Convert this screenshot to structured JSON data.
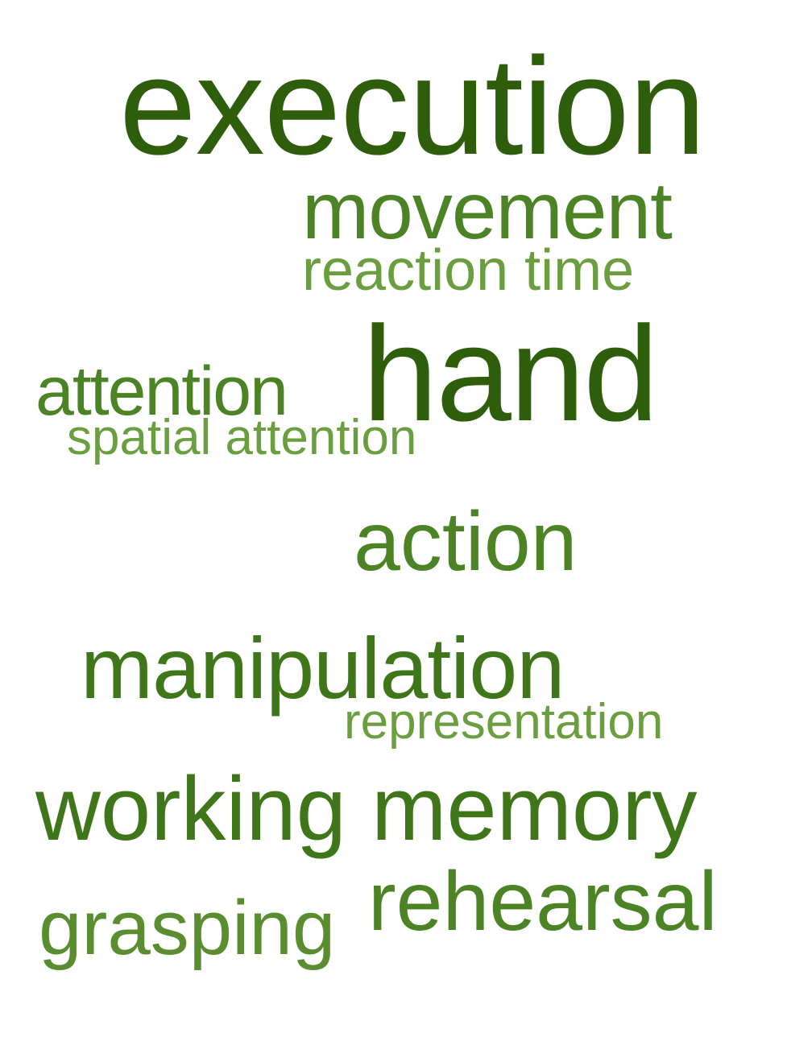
{
  "words": [
    {
      "text": "execution",
      "color": "#2e5e0c"
    },
    {
      "text": "movement",
      "color": "#4c8325"
    },
    {
      "text": "reaction time",
      "color": "#6a9e3e"
    },
    {
      "text": "hand",
      "color": "#2e5e0c"
    },
    {
      "text": "attention",
      "color": "#4c8325"
    },
    {
      "text": "spatial attention",
      "color": "#6a9e3e"
    },
    {
      "text": "action",
      "color": "#4c8325"
    },
    {
      "text": "manipulation",
      "color": "#3f7619"
    },
    {
      "text": "representation",
      "color": "#6a9e3e"
    },
    {
      "text": "working memory",
      "color": "#3f7619"
    },
    {
      "text": "rehearsal",
      "color": "#4c8325"
    },
    {
      "text": "grasping",
      "color": "#5a8d30"
    }
  ]
}
